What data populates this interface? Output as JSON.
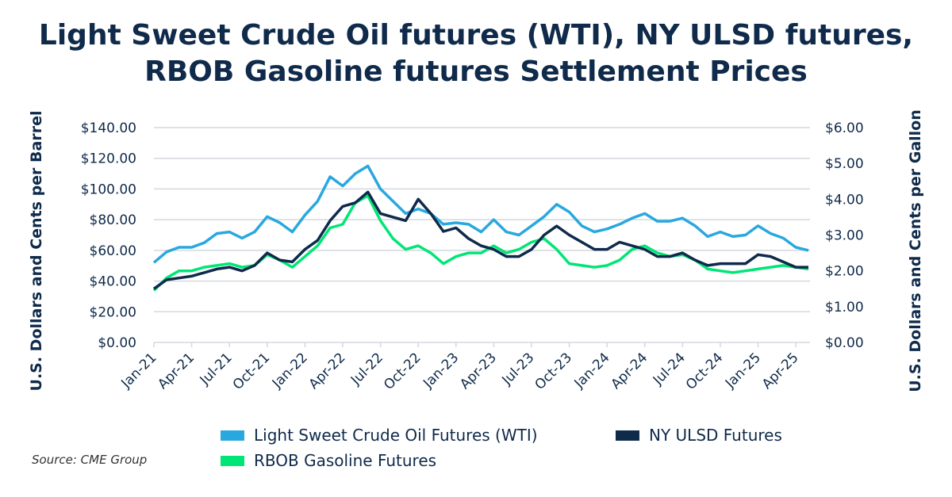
{
  "chart_data": {
    "type": "line",
    "title": "Light Sweet Crude Oil futures (WTI), NY ULSD futures, RBOB Gasoline futures Settlement Prices",
    "ylabel_left": "U.S. Dollars and Cents per Barrel",
    "ylabel_right": "U.S. Dollars and Cents per Gallon",
    "ylim_left": [
      0,
      140
    ],
    "ylim_right": [
      0,
      6
    ],
    "yticks_left": [
      "$0.00",
      "$20.00",
      "$40.00",
      "$60.00",
      "$80.00",
      "$100.00",
      "$120.00",
      "$140.00"
    ],
    "yticks_right": [
      "$0.00",
      "$1.00",
      "$2.00",
      "$3.00",
      "$4.00",
      "$5.00",
      "$6.00"
    ],
    "xticks": [
      "Jan-21",
      "Apr-21",
      "Jul-21",
      "Oct-21",
      "Jan-22",
      "Apr-22",
      "Jul-22",
      "Oct-22",
      "Jan-23",
      "Apr-23",
      "Jul-23",
      "Oct-23",
      "Jan-24",
      "Apr-24",
      "Jul-24",
      "Oct-24",
      "Jan-25",
      "Apr-25"
    ],
    "x_start": "2021-01",
    "x_end": "2025-05",
    "grid": true,
    "legend_placement": "bottom",
    "series": [
      {
        "name": "Light Sweet Crude Oil Futures (WTI)",
        "axis": "left",
        "color": "#29a8e0",
        "values": [
          52,
          59,
          62,
          62,
          65,
          71,
          72,
          68,
          72,
          82,
          78,
          72,
          83,
          92,
          108,
          102,
          110,
          115,
          100,
          92,
          84,
          87,
          84,
          77,
          78,
          77,
          72,
          80,
          72,
          70,
          76,
          82,
          90,
          85,
          76,
          72,
          74,
          77,
          81,
          84,
          79,
          79,
          81,
          76,
          69,
          72,
          69,
          70,
          76,
          71,
          68,
          62,
          60
        ]
      },
      {
        "name": "NY ULSD Futures",
        "axis": "right",
        "color": "#0f2a4a",
        "values": [
          1.5,
          1.75,
          1.8,
          1.85,
          1.95,
          2.05,
          2.1,
          2.0,
          2.15,
          2.5,
          2.3,
          2.25,
          2.6,
          2.85,
          3.4,
          3.8,
          3.9,
          4.2,
          3.6,
          3.5,
          3.4,
          4.0,
          3.6,
          3.1,
          3.2,
          2.9,
          2.7,
          2.6,
          2.4,
          2.4,
          2.6,
          3.0,
          3.25,
          3.0,
          2.8,
          2.6,
          2.6,
          2.8,
          2.7,
          2.6,
          2.4,
          2.4,
          2.5,
          2.3,
          2.15,
          2.2,
          2.2,
          2.2,
          2.45,
          2.4,
          2.25,
          2.1,
          2.1
        ]
      },
      {
        "name": "RBOB Gasoline Futures",
        "axis": "right",
        "color": "#00e676",
        "values": [
          1.45,
          1.8,
          2.0,
          2.0,
          2.1,
          2.15,
          2.2,
          2.1,
          2.15,
          2.45,
          2.3,
          2.1,
          2.4,
          2.7,
          3.2,
          3.3,
          3.9,
          4.1,
          3.4,
          2.9,
          2.6,
          2.7,
          2.5,
          2.2,
          2.4,
          2.5,
          2.5,
          2.7,
          2.5,
          2.6,
          2.8,
          2.9,
          2.6,
          2.2,
          2.15,
          2.1,
          2.15,
          2.3,
          2.6,
          2.7,
          2.5,
          2.4,
          2.45,
          2.3,
          2.05,
          2.0,
          1.95,
          2.0,
          2.05,
          2.1,
          2.15,
          2.1,
          2.05
        ]
      }
    ]
  },
  "source": "Source: CME Group"
}
